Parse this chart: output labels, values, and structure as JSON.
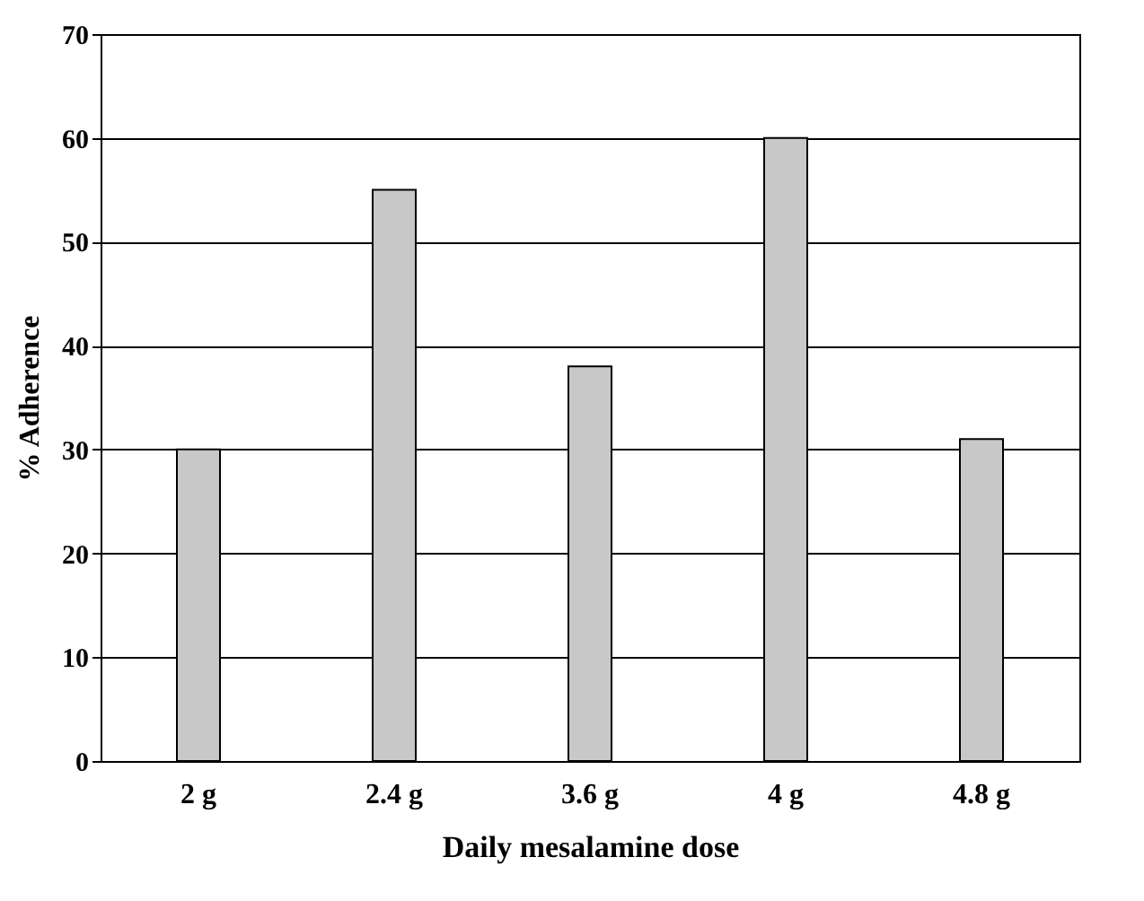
{
  "chart_data": {
    "type": "bar",
    "xlabel": "Daily mesalamine dose",
    "ylabel": "% Adherence",
    "categories": [
      "2 g",
      "2.4 g",
      "3.6 g",
      "4 g",
      "4.8 g"
    ],
    "values": [
      30,
      55,
      38,
      60,
      31
    ],
    "color": "#c8c8c8",
    "ylim": [
      0,
      70
    ],
    "yticks": [
      0,
      10,
      20,
      30,
      40,
      50,
      60,
      70
    ],
    "grid": "y"
  }
}
